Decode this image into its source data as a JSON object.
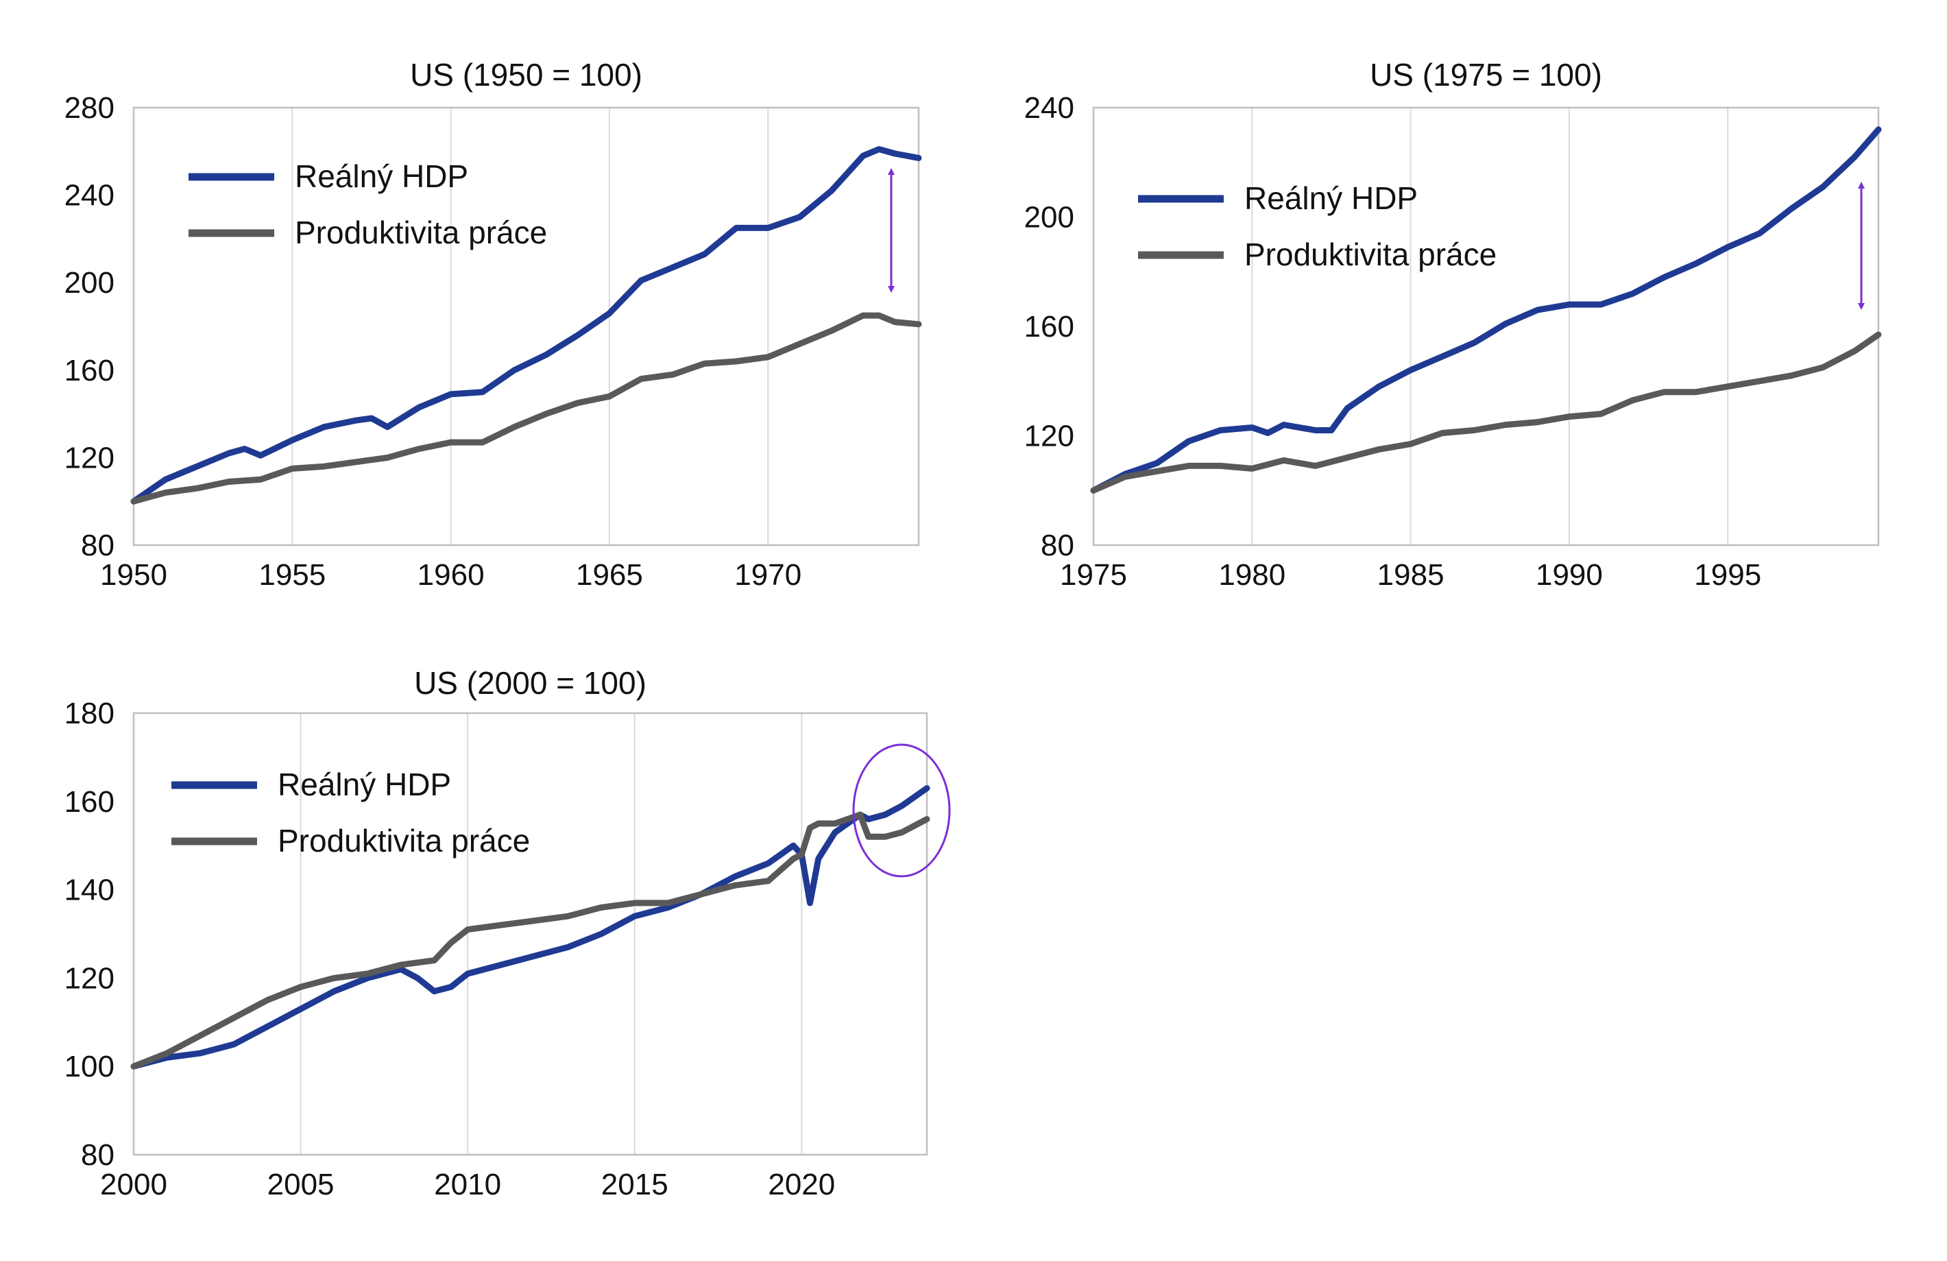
{
  "colors": {
    "gdp": "#1f3a93",
    "productivity": "#595959",
    "annotation": "#7b2fd6",
    "grid": "#d9d9d9",
    "axis": "#bfbfbf"
  },
  "chart_data": [
    {
      "type": "line",
      "title": "US (1950 = 100)",
      "xlim": [
        1950,
        1974.75
      ],
      "ylim": [
        80,
        280
      ],
      "xticks": [
        1950,
        1955,
        1960,
        1965,
        1970
      ],
      "yticks": [
        80,
        120,
        160,
        200,
        240,
        280
      ],
      "legend": "top-left",
      "annotation": "double-arrow",
      "series": [
        {
          "name": "Reálný HDP",
          "color": "gdp",
          "x": [
            1950,
            1951,
            1952,
            1953,
            1953.5,
            1954,
            1955,
            1956,
            1957,
            1957.5,
            1958,
            1959,
            1960,
            1961,
            1962,
            1963,
            1964,
            1965,
            1966,
            1967,
            1968,
            1969,
            1970,
            1971,
            1972,
            1973,
            1973.5,
            1974,
            1974.75
          ],
          "y": [
            100,
            110,
            116,
            122,
            124,
            121,
            128,
            134,
            137,
            138,
            134,
            143,
            149,
            150,
            160,
            167,
            176,
            186,
            201,
            207,
            213,
            225,
            225,
            230,
            242,
            258,
            261,
            259,
            257
          ]
        },
        {
          "name": "Produktivita práce",
          "color": "productivity",
          "x": [
            1950,
            1951,
            1952,
            1953,
            1954,
            1955,
            1956,
            1957,
            1958,
            1959,
            1960,
            1961,
            1962,
            1963,
            1964,
            1965,
            1966,
            1967,
            1968,
            1969,
            1970,
            1971,
            1972,
            1973,
            1973.5,
            1974,
            1974.75
          ],
          "y": [
            100,
            104,
            106,
            109,
            110,
            115,
            116,
            118,
            120,
            124,
            127,
            127,
            134,
            140,
            145,
            148,
            156,
            158,
            163,
            164,
            166,
            172,
            178,
            185,
            185,
            182,
            181
          ]
        }
      ]
    },
    {
      "type": "line",
      "title": "US (1975 = 100)",
      "xlim": [
        1975,
        1999.75
      ],
      "ylim": [
        80,
        240
      ],
      "xticks": [
        1975,
        1980,
        1985,
        1990,
        1995
      ],
      "yticks": [
        80,
        120,
        160,
        200,
        240
      ],
      "legend": "top-left",
      "annotation": "double-arrow",
      "series": [
        {
          "name": "Reálný HDP",
          "color": "gdp",
          "x": [
            1975,
            1976,
            1977,
            1978,
            1979,
            1980,
            1980.5,
            1981,
            1982,
            1982.5,
            1983,
            1984,
            1985,
            1986,
            1987,
            1988,
            1989,
            1990,
            1990.5,
            1991,
            1992,
            1993,
            1994,
            1995,
            1996,
            1997,
            1998,
            1999,
            1999.75
          ],
          "y": [
            100,
            106,
            110,
            118,
            122,
            123,
            121,
            124,
            122,
            122,
            130,
            138,
            144,
            149,
            154,
            161,
            166,
            168,
            168,
            168,
            172,
            178,
            183,
            189,
            194,
            203,
            211,
            222,
            232
          ]
        },
        {
          "name": "Produktivita práce",
          "color": "productivity",
          "x": [
            1975,
            1976,
            1977,
            1978,
            1979,
            1980,
            1981,
            1982,
            1983,
            1984,
            1985,
            1986,
            1987,
            1988,
            1989,
            1990,
            1991,
            1992,
            1993,
            1994,
            1995,
            1996,
            1997,
            1998,
            1999,
            1999.75
          ],
          "y": [
            100,
            105,
            107,
            109,
            109,
            108,
            111,
            109,
            112,
            115,
            117,
            121,
            122,
            124,
            125,
            127,
            128,
            133,
            136,
            136,
            138,
            140,
            142,
            145,
            151,
            157
          ]
        }
      ]
    },
    {
      "type": "line",
      "title": "US (2000 = 100)",
      "xlim": [
        2000,
        2023.75
      ],
      "ylim": [
        80,
        180
      ],
      "xticks": [
        2000,
        2005,
        2010,
        2015,
        2020
      ],
      "yticks": [
        80,
        100,
        120,
        140,
        160,
        180
      ],
      "legend": "top-left",
      "annotation": "ellipse",
      "series": [
        {
          "name": "Reálný HDP",
          "color": "gdp",
          "x": [
            2000,
            2001,
            2002,
            2003,
            2004,
            2005,
            2006,
            2007,
            2008,
            2008.5,
            2009,
            2009.5,
            2010,
            2011,
            2012,
            2013,
            2014,
            2015,
            2016,
            2017,
            2018,
            2019,
            2019.75,
            2020,
            2020.25,
            2020.5,
            2021,
            2021.75,
            2022,
            2022.5,
            2023,
            2023.75
          ],
          "y": [
            100,
            102,
            103,
            105,
            109,
            113,
            117,
            120,
            122,
            120,
            117,
            118,
            121,
            123,
            125,
            127,
            130,
            134,
            136,
            139,
            143,
            146,
            150,
            148,
            137,
            147,
            153,
            157,
            156,
            157,
            159,
            163
          ]
        },
        {
          "name": "Produktivita práce",
          "color": "productivity",
          "x": [
            2000,
            2001,
            2002,
            2003,
            2004,
            2005,
            2006,
            2007,
            2008,
            2009,
            2009.5,
            2010,
            2011,
            2012,
            2013,
            2014,
            2015,
            2016,
            2017,
            2018,
            2019,
            2019.75,
            2020,
            2020.25,
            2020.5,
            2021,
            2021.75,
            2022,
            2022.5,
            2023,
            2023.75
          ],
          "y": [
            100,
            103,
            107,
            111,
            115,
            118,
            120,
            121,
            123,
            124,
            128,
            131,
            132,
            133,
            134,
            136,
            137,
            137,
            139,
            141,
            142,
            147,
            148,
            154,
            155,
            155,
            157,
            152,
            152,
            153,
            156
          ]
        }
      ]
    }
  ]
}
